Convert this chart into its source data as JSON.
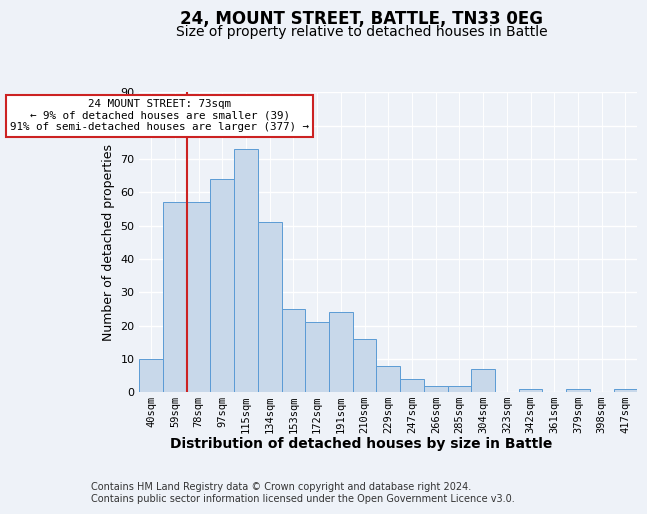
{
  "title": "24, MOUNT STREET, BATTLE, TN33 0EG",
  "subtitle": "Size of property relative to detached houses in Battle",
  "xlabel": "Distribution of detached houses by size in Battle",
  "ylabel": "Number of detached properties",
  "bar_color": "#c8d8ea",
  "bar_edge_color": "#5b9bd5",
  "categories": [
    "40sqm",
    "59sqm",
    "78sqm",
    "97sqm",
    "115sqm",
    "134sqm",
    "153sqm",
    "172sqm",
    "191sqm",
    "210sqm",
    "229sqm",
    "247sqm",
    "266sqm",
    "285sqm",
    "304sqm",
    "323sqm",
    "342sqm",
    "361sqm",
    "379sqm",
    "398sqm",
    "417sqm"
  ],
  "values": [
    10,
    57,
    57,
    64,
    73,
    51,
    25,
    21,
    24,
    16,
    8,
    4,
    2,
    2,
    7,
    0,
    1,
    0,
    1,
    0,
    1
  ],
  "ylim": [
    0,
    90
  ],
  "yticks": [
    0,
    10,
    20,
    30,
    40,
    50,
    60,
    70,
    80,
    90
  ],
  "property_line_col_idx": 2,
  "property_line_color": "#cc2222",
  "annotation_text": "24 MOUNT STREET: 73sqm\n← 9% of detached houses are smaller (39)\n91% of semi-detached houses are larger (377) →",
  "annotation_box_color": "#ffffff",
  "annotation_box_edge": "#cc2222",
  "footer": "Contains HM Land Registry data © Crown copyright and database right 2024.\nContains public sector information licensed under the Open Government Licence v3.0.",
  "bg_color": "#eef2f8",
  "plot_bg_color": "#eef2f8",
  "grid_color": "#ffffff",
  "title_fontsize": 12,
  "subtitle_fontsize": 10,
  "ylabel_fontsize": 9,
  "xlabel_fontsize": 10,
  "tick_fontsize": 7.5,
  "footer_fontsize": 7
}
